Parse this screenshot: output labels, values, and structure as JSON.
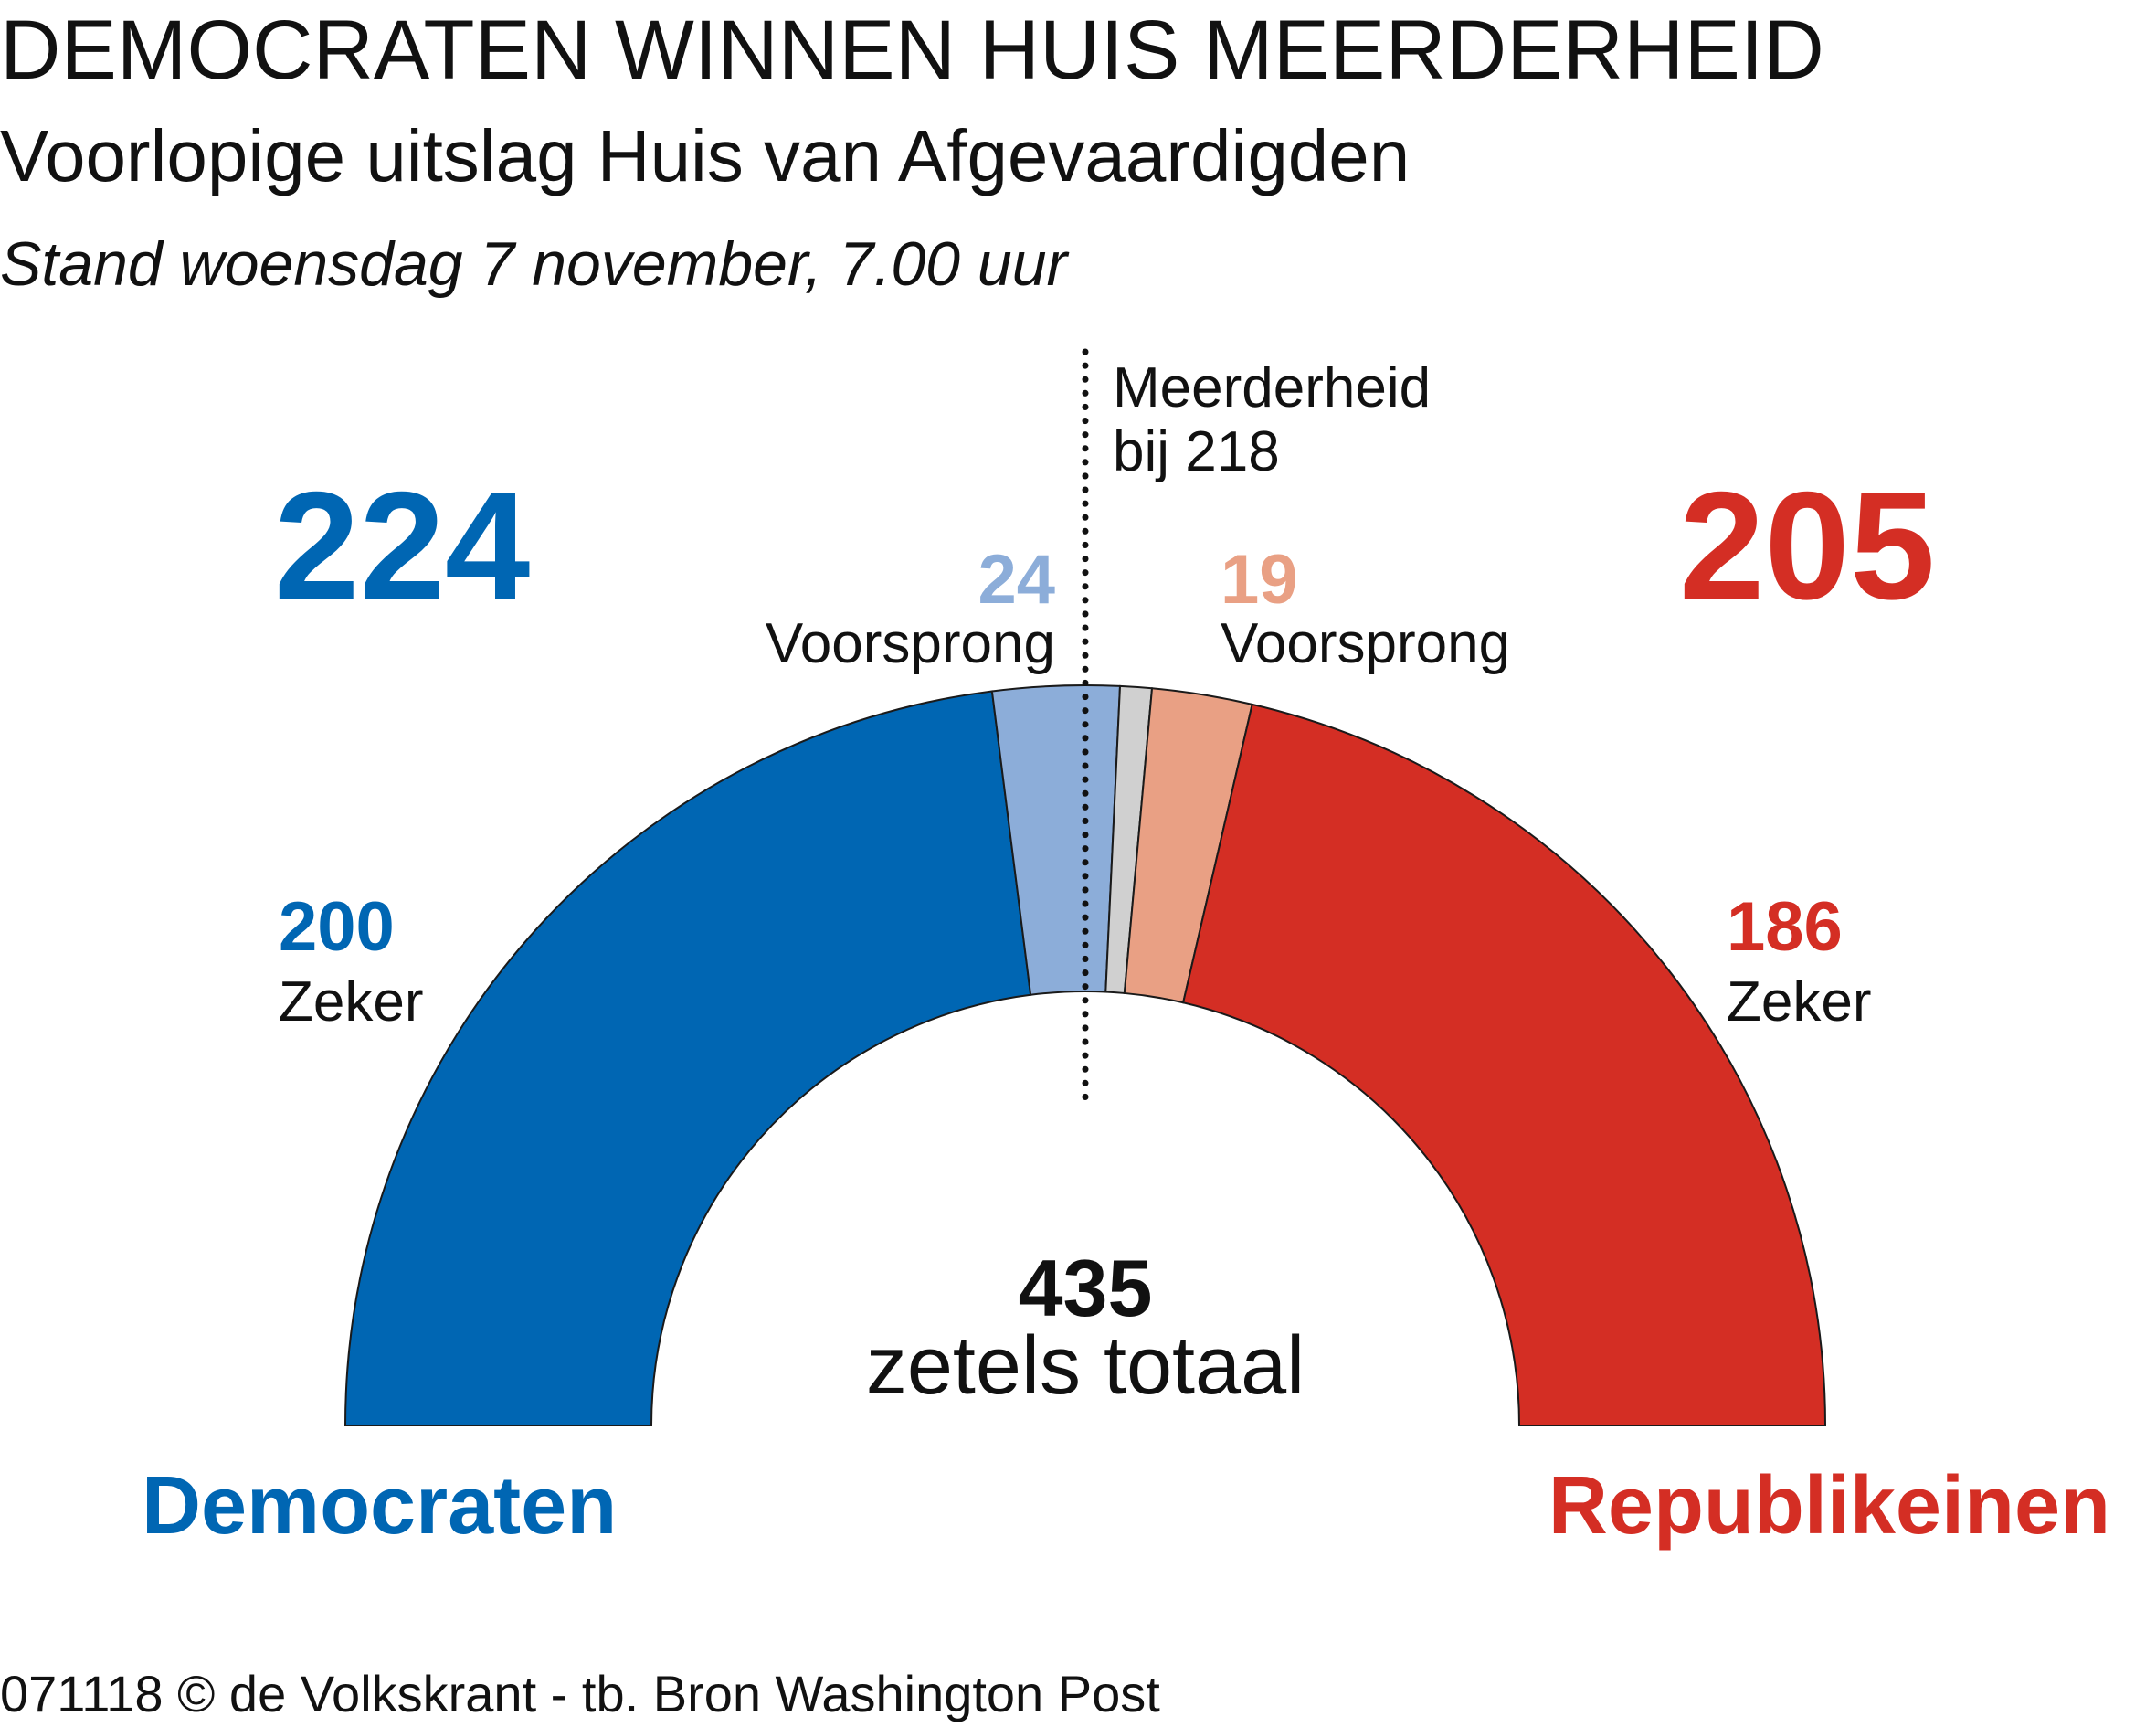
{
  "header": {
    "title": "DEMOCRATEN WINNEN HUIS MEERDERHEID",
    "subtitle": "Voorlopige uitslag Huis van Afgevaardigden",
    "dateline": "Stand woensdag 7 november, 7.00 uur"
  },
  "chart_data": {
    "type": "pie",
    "shape": "semicircle",
    "total_value": "435",
    "total_label": "zetels totaal",
    "majority": {
      "line1": "Meerderheid",
      "line2": "bij 218",
      "value": 218
    },
    "segments": [
      {
        "key": "dem_zeker",
        "party": "Democraten",
        "status": "Zeker",
        "value": 200,
        "color": "#0066b3"
      },
      {
        "key": "dem_voorsprong",
        "party": "Democraten",
        "status": "Voorsprong",
        "value": 24,
        "color": "#8cadd9"
      },
      {
        "key": "undecided",
        "party": "",
        "status": "",
        "value": 6,
        "color": "#d0d0d0"
      },
      {
        "key": "rep_voorsprong",
        "party": "Republikeinen",
        "status": "Voorsprong",
        "value": 19,
        "color": "#e9a084"
      },
      {
        "key": "rep_zeker",
        "party": "Republikeinen",
        "status": "Zeker",
        "value": 186,
        "color": "#d42e24"
      }
    ],
    "parties": {
      "dem": {
        "name": "Democraten",
        "total": "224",
        "color": "#0066b3"
      },
      "rep": {
        "name": "Republikeinen",
        "total": "205",
        "color": "#d42e24"
      }
    },
    "labels": {
      "dem_zeker_value": "200",
      "dem_zeker_label": "Zeker",
      "dem_lead_value": "24",
      "dem_lead_label": "Voorsprong",
      "rep_lead_value": "19",
      "rep_lead_label": "Voorsprong",
      "rep_zeker_value": "186",
      "rep_zeker_label": "Zeker"
    },
    "colors": {
      "dem_zeker": "#0066b3",
      "dem_lead": "#8cadd9",
      "rep_lead": "#e9a084",
      "rep_zeker": "#d42e24"
    }
  },
  "footer": {
    "source": "071118 © de Volkskrant - tb. Bron Washington Post"
  }
}
